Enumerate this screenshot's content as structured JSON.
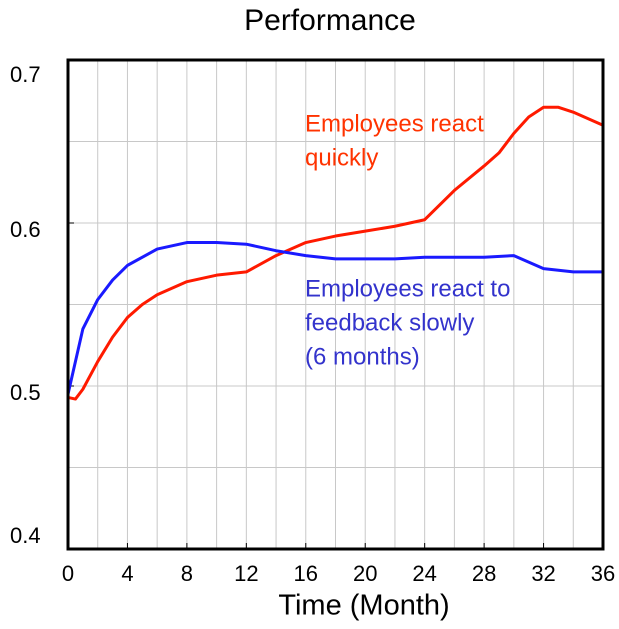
{
  "chart_data": {
    "type": "line",
    "title": "Performance",
    "xlabel": "Time (Month)",
    "xlim": [
      0,
      36
    ],
    "xticks": [
      0,
      4,
      8,
      12,
      16,
      20,
      24,
      28,
      32,
      36
    ],
    "xgrid": [
      2,
      4,
      6,
      8,
      10,
      12,
      14,
      16,
      18,
      20,
      22,
      24,
      26,
      28,
      30,
      32,
      34
    ],
    "ylim": [
      0.4,
      0.7
    ],
    "yticks": [
      0.4,
      0.5,
      0.6,
      0.7
    ],
    "ygrid": [
      0.45,
      0.5,
      0.55,
      0.6,
      0.65
    ],
    "grid": true,
    "series": [
      {
        "name": "Employees react quickly",
        "color": "#ff1a00",
        "x": [
          0,
          0.5,
          1,
          2,
          3,
          4,
          5,
          6,
          8,
          10,
          12,
          14,
          16,
          18,
          20,
          22,
          24,
          26,
          28,
          29,
          30,
          31,
          32,
          33,
          34,
          36
        ],
        "values": [
          0.493,
          0.492,
          0.498,
          0.515,
          0.53,
          0.542,
          0.55,
          0.556,
          0.564,
          0.568,
          0.57,
          0.58,
          0.588,
          0.592,
          0.595,
          0.598,
          0.602,
          0.62,
          0.635,
          0.643,
          0.655,
          0.665,
          0.671,
          0.671,
          0.668,
          0.66
        ]
      },
      {
        "name": "Employees react to feedback slowly (6 months)",
        "color": "#1a1aff",
        "x": [
          0,
          1,
          2,
          3,
          4,
          6,
          8,
          10,
          12,
          14,
          16,
          18,
          20,
          22,
          24,
          26,
          28,
          30,
          31,
          32,
          34,
          36
        ],
        "values": [
          0.495,
          0.535,
          0.553,
          0.565,
          0.574,
          0.584,
          0.588,
          0.588,
          0.587,
          0.583,
          0.58,
          0.578,
          0.578,
          0.578,
          0.579,
          0.579,
          0.579,
          0.58,
          0.576,
          0.572,
          0.57,
          0.57
        ]
      }
    ],
    "annotations": [
      {
        "lines": [
          "Employees react",
          "quickly"
        ],
        "color": "#ff3300"
      },
      {
        "lines": [
          "Employees react to",
          "feedback slowly",
          "(6 months)"
        ],
        "color": "#3333cc"
      }
    ]
  }
}
